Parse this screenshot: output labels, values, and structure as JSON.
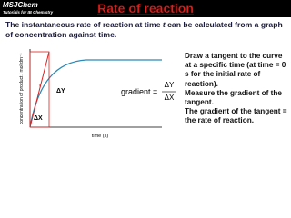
{
  "header": {
    "logo": "MSJChem",
    "tagline": "Tutorials for IB Chemistry",
    "title": "Rate of reaction"
  },
  "intro": {
    "before": "The instantaneous rate of reaction at time ",
    "variable": "t",
    "after": " can be calculated from a graph of concentration against time."
  },
  "graph": {
    "y_label": "concentration of product / mol dm⁻³",
    "x_label": "time (s)",
    "delta_y": "ΔY",
    "delta_x": "ΔX"
  },
  "formula": {
    "lhs": "gradient =",
    "numerator": "ΔY",
    "denominator": "ΔX"
  },
  "steps": [
    "Draw a tangent to the curve at a specific time (at time = 0 s for the initial rate of reaction).",
    "Measure the gradient of the tangent.",
    "The gradient of the tangent = the rate of reaction."
  ]
}
